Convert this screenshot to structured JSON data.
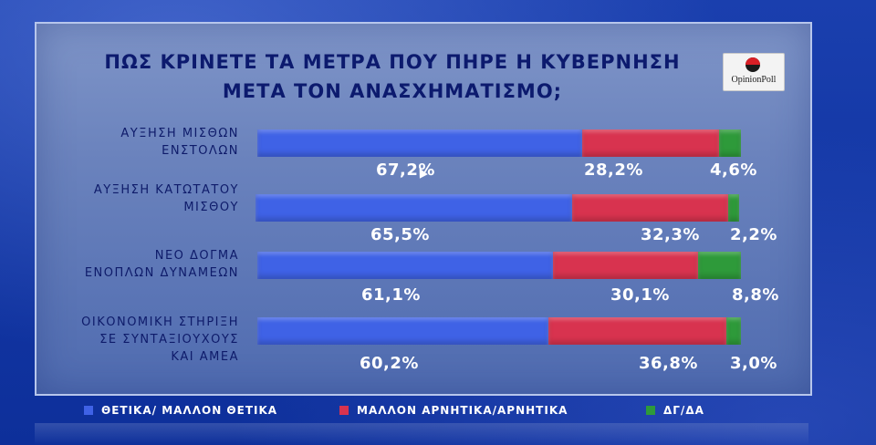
{
  "title_lines": [
    "ΠΩΣ ΚΡΙΝΕΤΕ ΤΑ ΜΕΤΡΑ ΠΟΥ ΠΗΡΕ Η ΚΥΒΕΡΝΗΣΗ",
    "ΜΕΤΑ ΤΟΝ ΑΝΑΣΧΗΜΑΤΙΣΜΟ;"
  ],
  "logo_text": "OpinionPoll",
  "colors": {
    "positive": "#3f62e6",
    "negative": "#d8334f",
    "dk": "#2e9a3a"
  },
  "chart_data": {
    "type": "bar",
    "orientation": "horizontal",
    "stacked": true,
    "title": "ΠΩΣ ΚΡΙΝΕΤΕ ΤΑ ΜΕΤΡΑ ΠΟΥ ΠΗΡΕ Η ΚΥΒΕΡΝΗΣΗ ΜΕΤΑ ΤΟΝ ΑΝΑΣΧΗΜΑΤΙΣΜΟ;",
    "categories": [
      [
        "ΑΥΞΗΣΗ ΜΙΣΘΩΝ",
        "ΕΝΣΤΟΛΩΝ"
      ],
      [
        "ΑΥΞΗΣΗ ΚΑΤΩΤΑΤΟΥ",
        "ΜΙΣΘΟΥ"
      ],
      [
        "ΝΕΟ ΔΟΓΜΑ",
        "ΕΝΟΠΛΩΝ ΔΥΝΑΜΕΩΝ"
      ],
      [
        "ΟΙΚΟΝΟΜΙΚΗ ΣΤΗΡΙΞΗ",
        "ΣΕ ΣΥΝΤΑΞΙΟΥΧΟΥΣ",
        "ΚΑΙ ΑΜΕΑ"
      ]
    ],
    "series": [
      {
        "name": "ΘΕΤΙΚΑ/ ΜΑΛΛΟΝ ΘΕΤΙΚΑ",
        "values": [
          67.2,
          65.5,
          61.1,
          60.2
        ],
        "labels": [
          "67,2%",
          "65,5%",
          "61,1%",
          "60,2%"
        ]
      },
      {
        "name": "ΜΑΛΛΟΝ ΑΡΝΗΤΙΚΑ/ΑΡΝΗΤΙΚΑ",
        "values": [
          28.2,
          32.3,
          30.1,
          36.8
        ],
        "labels": [
          "28,2%",
          "32,3%",
          "30,1%",
          "36,8%"
        ]
      },
      {
        "name": "ΔΓ/ΔΑ",
        "values": [
          4.6,
          2.2,
          8.8,
          3.0
        ],
        "labels": [
          "4,6%",
          "2,2%",
          "8,8%",
          "3,0%"
        ]
      }
    ],
    "xlim": [
      0,
      100
    ],
    "legend_position": "bottom"
  }
}
